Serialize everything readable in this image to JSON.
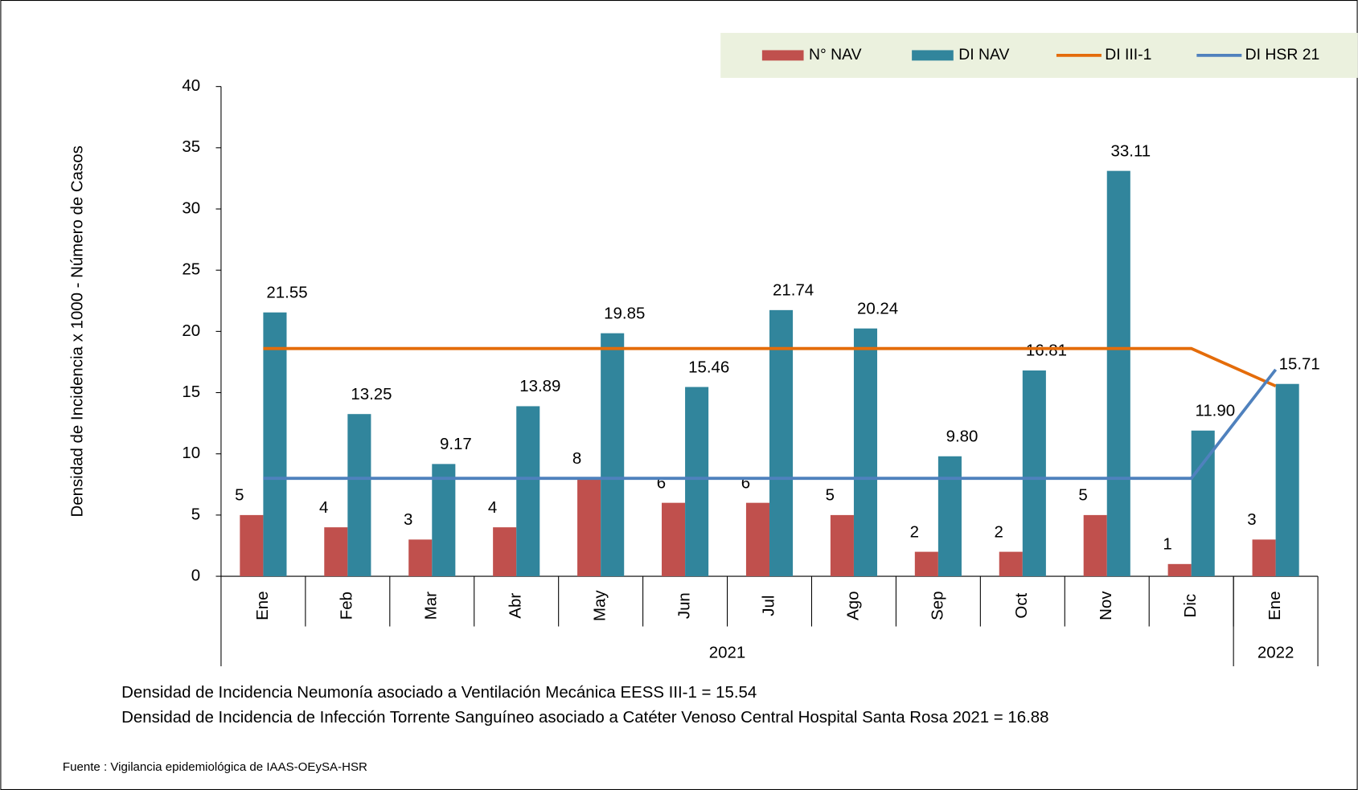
{
  "chart_data": {
    "type": "bar",
    "y_label": "Densidad de Incidencia x 1000 - Número de Casos",
    "categories": [
      "Ene",
      "Feb",
      "Mar",
      "Abr",
      "May",
      "Jun",
      "Jul",
      "Ago",
      "Sep",
      "Oct",
      "Nov",
      "Dic",
      "Ene"
    ],
    "groups": [
      {
        "label": "2021",
        "span": [
          0,
          11
        ]
      },
      {
        "label": "2022",
        "span": [
          12,
          12
        ]
      }
    ],
    "series": [
      {
        "name": "N° NAV",
        "kind": "bar",
        "color": "#c0504d",
        "values": [
          5,
          4,
          3,
          4,
          8,
          6,
          6,
          5,
          2,
          2,
          5,
          1,
          3
        ]
      },
      {
        "name": "DI NAV",
        "kind": "bar",
        "color": "#31859c",
        "values": [
          21.55,
          13.25,
          9.17,
          13.89,
          19.85,
          15.46,
          21.74,
          20.24,
          9.8,
          16.81,
          33.11,
          11.9,
          15.71
        ],
        "value_labels": [
          "21.55",
          "13.25",
          "9.17",
          "13.89",
          "19.85",
          "15.46",
          "21.74",
          "20.24",
          "9.80",
          "16.81",
          "33.11",
          "11.90",
          "15.71"
        ]
      },
      {
        "name": "DI III-1",
        "kind": "line",
        "color": "#e46c0a",
        "values": [
          18.6,
          18.6,
          18.6,
          18.6,
          18.6,
          18.6,
          18.6,
          18.6,
          18.6,
          18.6,
          18.6,
          18.6,
          15.54
        ]
      },
      {
        "name": "DI HSR 21",
        "kind": "line",
        "color": "#4f81bd",
        "values": [
          8,
          8,
          8,
          8,
          8,
          8,
          8,
          8,
          8,
          8,
          8,
          8,
          16.88
        ]
      }
    ],
    "ylim": [
      0,
      40
    ],
    "yticks": [
      0,
      5,
      10,
      15,
      20,
      25,
      30,
      35,
      40
    ],
    "legend": "top-right",
    "notes": [
      "Densidad de Incidencia Neumonía asociado a Ventilación Mecánica EESS III-1 = 15.54",
      "Densidad de Incidencia de Infección Torrente Sanguíneo asociado a Catéter Venoso Central Hospital Santa Rosa 2021 = 16.88"
    ],
    "source": "Fuente : Vigilancia epidemiológica de IAAS-OEySA-HSR"
  }
}
